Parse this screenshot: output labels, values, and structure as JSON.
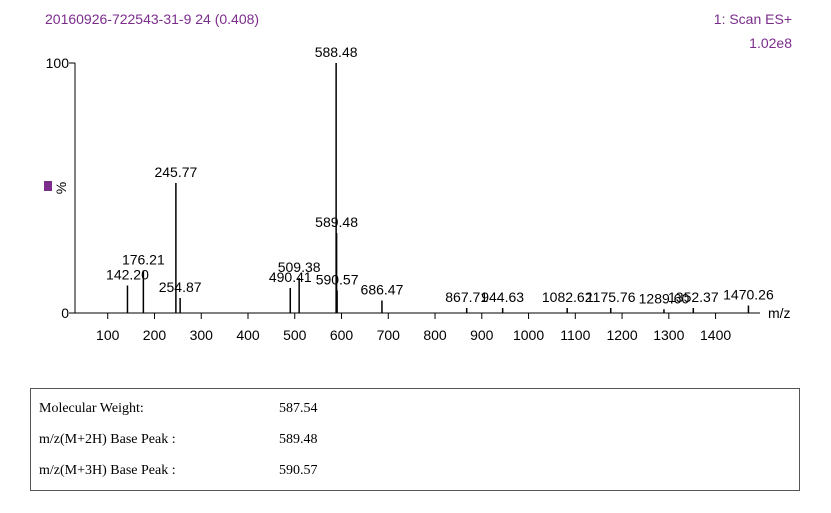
{
  "chart_data": {
    "type": "stem",
    "title": "20160926-722543-31-9 24 (0.408)",
    "scan_label": "1: Scan ES+",
    "intensity_label": "1.02e8",
    "y_label": "%",
    "x_label": "m/z",
    "color": "#000000",
    "x": [
      142.2,
      176.21,
      245.77,
      254.87,
      490.41,
      509.38,
      588.48,
      589.48,
      590.57,
      686.47,
      867.71,
      944.63,
      1082.62,
      1175.76,
      1289.6,
      1352.37,
      1470.26
    ],
    "x_labels": [
      "142.20",
      "176.21",
      "245.77",
      "254.87",
      "490.41",
      "509.38",
      "588.48",
      "589.48",
      "590.57",
      "686.47",
      "867.71",
      "944.63",
      "1082.62",
      "1175.76",
      "1289.60",
      "1352.37",
      "1470.26"
    ],
    "values": [
      11,
      17,
      52,
      6,
      10,
      14,
      100,
      32,
      9,
      5,
      2,
      2,
      2,
      2,
      1.5,
      2,
      3
    ],
    "xlim": [
      30,
      1495
    ],
    "ylim": [
      0,
      100
    ],
    "xticks": [
      100,
      200,
      300,
      400,
      500,
      600,
      700,
      800,
      900,
      1000,
      1100,
      1200,
      1300,
      1400
    ],
    "yticks": [
      0,
      100
    ]
  },
  "table": {
    "rows": [
      [
        "Molecular Weight:",
        "587.54"
      ],
      [
        "m/z(M+2H) Base Peak :",
        "589.48"
      ],
      [
        "m/z(M+3H) Base Peak :",
        "590.57"
      ]
    ]
  }
}
